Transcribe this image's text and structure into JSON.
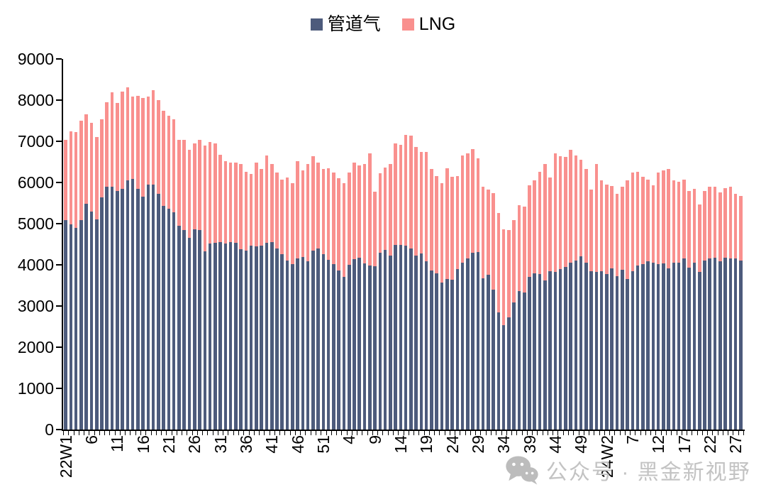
{
  "legend": {
    "items": [
      {
        "label": "管道气",
        "color": "#4D5B7C"
      },
      {
        "label": "LNG",
        "color": "#F9908E"
      }
    ]
  },
  "watermark": {
    "icon": "wechat-icon",
    "text": "公众号 · 黑金新视野"
  },
  "chart_data": {
    "type": "bar",
    "stacked": true,
    "title": "",
    "xlabel": "",
    "ylabel": "",
    "ylim": [
      0,
      9000
    ],
    "ytick_step": 1000,
    "y_tick_labels": [
      "0",
      "1000",
      "2000",
      "3000",
      "4000",
      "5000",
      "6000",
      "7000",
      "8000",
      "9000"
    ],
    "x_tick_labels": [
      "22W1",
      "6",
      "11",
      "16",
      "21",
      "26",
      "31",
      "36",
      "41",
      "46",
      "51",
      "4",
      "9",
      "14",
      "19",
      "24",
      "29",
      "34",
      "39",
      "44",
      "49",
      "24W2",
      "7",
      "12",
      "17",
      "22",
      "27"
    ],
    "x_tick_every": 5,
    "grid": false,
    "legend_position": "top-center",
    "x_label_rotation": -90,
    "series": [
      {
        "name": "管道气",
        "color": "#4D5B7C",
        "values": [
          5080,
          4980,
          4890,
          5080,
          5490,
          5300,
          5110,
          5630,
          5890,
          5900,
          5800,
          5840,
          6060,
          6090,
          5840,
          5660,
          5950,
          5950,
          5730,
          5430,
          5360,
          5270,
          4940,
          4850,
          4660,
          4870,
          4850,
          4320,
          4510,
          4540,
          4550,
          4520,
          4550,
          4540,
          4380,
          4340,
          4460,
          4440,
          4460,
          4540,
          4550,
          4390,
          4260,
          4110,
          4020,
          4150,
          4190,
          4090,
          4340,
          4400,
          4250,
          4120,
          4020,
          3870,
          3710,
          4000,
          4130,
          4170,
          4030,
          3990,
          3960,
          4290,
          4360,
          4230,
          4480,
          4480,
          4460,
          4400,
          4230,
          4280,
          4090,
          3860,
          3790,
          3570,
          3660,
          3640,
          3890,
          4060,
          4150,
          4290,
          4310,
          3680,
          3760,
          3390,
          2850,
          2530,
          2730,
          3080,
          3360,
          3330,
          3710,
          3790,
          3780,
          3620,
          3850,
          3820,
          3900,
          3950,
          4050,
          4100,
          4200,
          4060,
          3850,
          3830,
          3850,
          3770,
          3920,
          3730,
          3880,
          3660,
          3850,
          3990,
          4020,
          4080,
          4060,
          4020,
          4030,
          3920,
          4060,
          4050,
          4150,
          3930,
          4050,
          3830,
          4110,
          4160,
          4170,
          4080,
          4170,
          4160,
          4150,
          4100
        ]
      },
      {
        "name": "LNG",
        "color": "#F9908E",
        "values": [
          1960,
          2270,
          2340,
          2420,
          2160,
          2140,
          2000,
          1910,
          2050,
          2290,
          2130,
          2360,
          2250,
          2000,
          2260,
          2390,
          2140,
          2300,
          2270,
          2320,
          2260,
          2260,
          2090,
          2190,
          2140,
          2070,
          2180,
          2580,
          2470,
          2400,
          2130,
          2000,
          1940,
          1940,
          2060,
          1920,
          1750,
          2040,
          1860,
          2110,
          1900,
          1850,
          1810,
          2010,
          1970,
          2370,
          2110,
          2360,
          2300,
          2090,
          2070,
          2230,
          2230,
          2230,
          2270,
          2250,
          2350,
          2240,
          2420,
          2720,
          1820,
          1930,
          2000,
          2220,
          2460,
          2430,
          2690,
          2730,
          2640,
          2470,
          2650,
          2470,
          2360,
          2410,
          2690,
          2490,
          2270,
          2590,
          2560,
          2520,
          2270,
          2210,
          2060,
          2350,
          2410,
          2340,
          2110,
          2010,
          2080,
          2080,
          2220,
          2260,
          2480,
          2820,
          2270,
          2880,
          2740,
          2670,
          2740,
          2550,
          2360,
          2270,
          1970,
          2620,
          2200,
          2180,
          2000,
          1990,
          2020,
          2390,
          2400,
          2270,
          2110,
          1990,
          1870,
          2230,
          2270,
          2410,
          2000,
          1960,
          1920,
          1870,
          1790,
          1640,
          1680,
          1730,
          1730,
          1680,
          1700,
          1730,
          1580,
          1580
        ]
      }
    ]
  }
}
